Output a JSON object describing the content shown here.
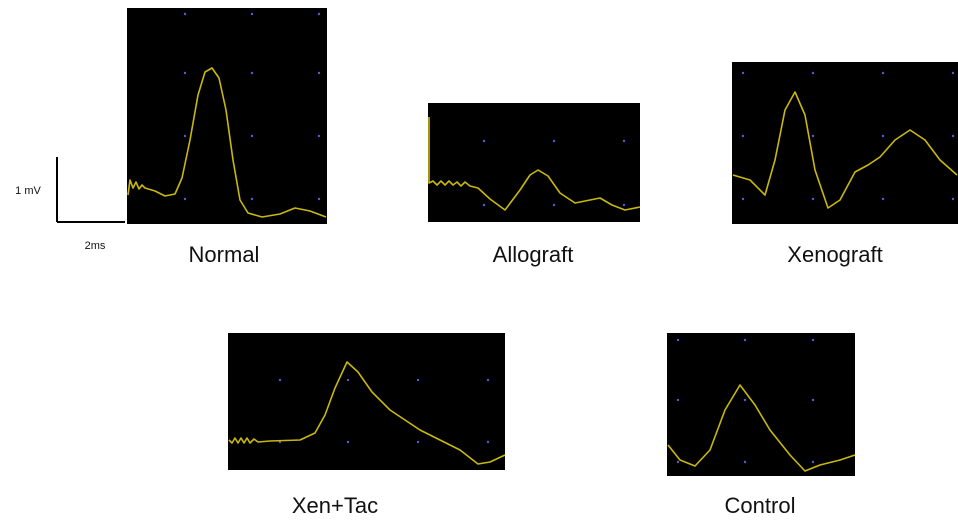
{
  "scale_bar": {
    "vertical": "1 mV",
    "horizontal": "2ms"
  },
  "panels": [
    {
      "label": "Normal"
    },
    {
      "label": "Allograft"
    },
    {
      "label": "Xenograft"
    },
    {
      "label": "Xen+Tac"
    },
    {
      "label": "Control"
    }
  ]
}
